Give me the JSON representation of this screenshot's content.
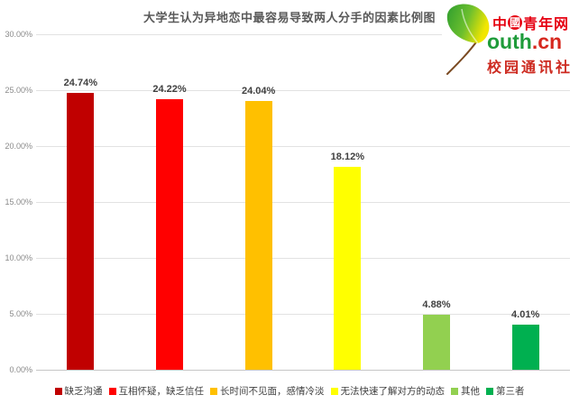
{
  "title": "大学生认为异地恋中最容易导致两人分手的因素比例图",
  "logo": {
    "badge_zhong": "中",
    "badge_guo": "國",
    "site_name": "青年网",
    "domain_prefix": "outh",
    "domain_suffix": ".cn",
    "subtitle": "校园通讯社",
    "leaf_color_dark": "#2f9e2f",
    "leaf_color_light": "#f2e600",
    "brand_red": "#e60012",
    "brand_green": "#1f9b3a"
  },
  "chart_data": {
    "type": "bar",
    "title": "大学生认为异地恋中最容易导致两人分手的因素比例图",
    "categories": [
      "缺乏沟通",
      "互相怀疑，缺乏信任",
      "长时间不见面，感情冷淡",
      "无法快速了解对方的动态",
      "其他",
      "第三者"
    ],
    "values": [
      24.74,
      24.22,
      24.04,
      18.12,
      4.88,
      4.01
    ],
    "data_labels": [
      "24.74%",
      "24.22%",
      "24.04%",
      "18.12%",
      "4.88%",
      "4.01%"
    ],
    "bar_colors": [
      "#C00000",
      "#FF0000",
      "#FFC000",
      "#FFFF00",
      "#92D050",
      "#00B050"
    ],
    "xlabel": "",
    "ylabel": "",
    "ylim": [
      0,
      30
    ],
    "ytick_step": 5,
    "ytick_labels": [
      "0.00%",
      "5.00%",
      "10.00%",
      "15.00%",
      "20.00%",
      "25.00%",
      "30.00%"
    ],
    "grid": true,
    "legend_position": "bottom"
  }
}
